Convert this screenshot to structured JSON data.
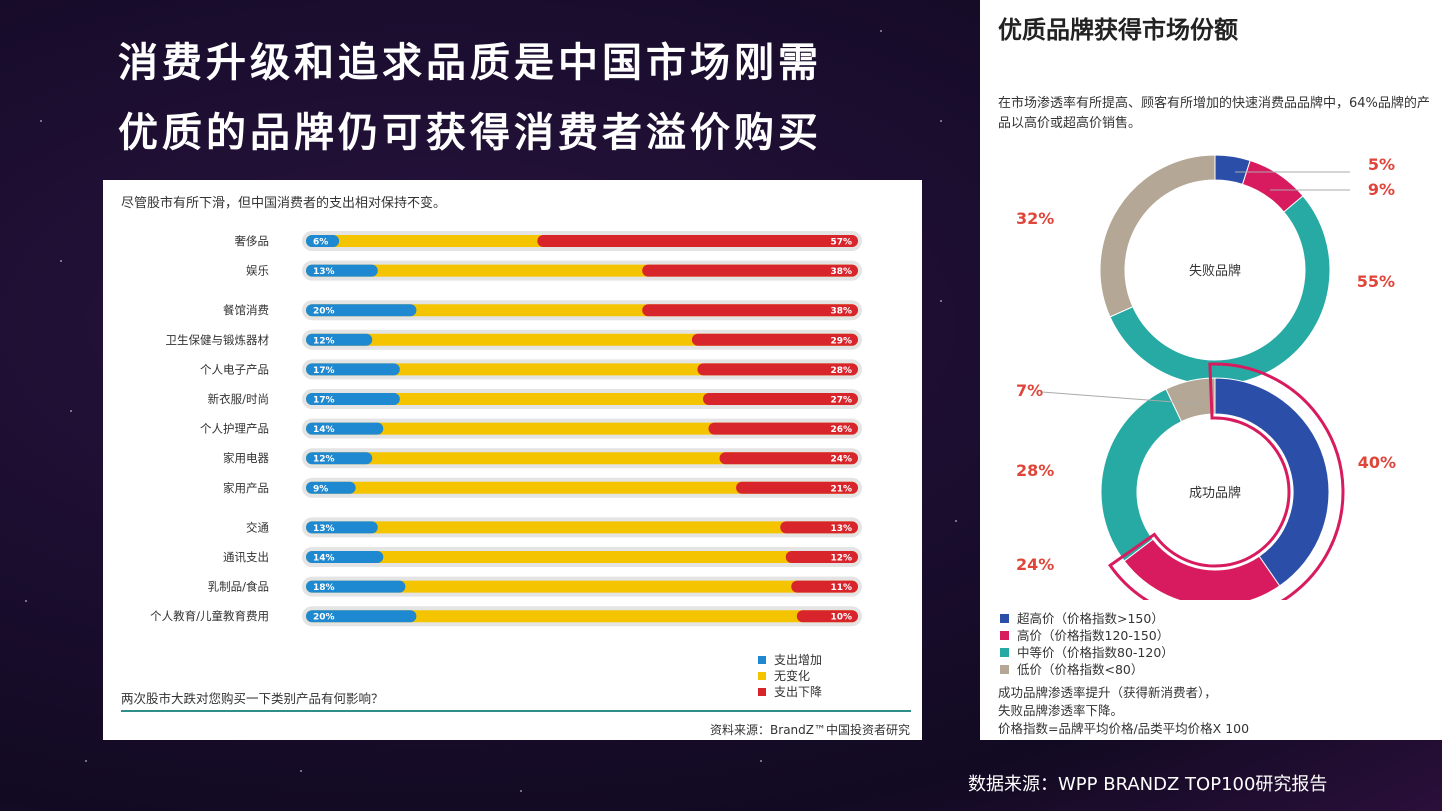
{
  "slide": {
    "title_lines": [
      "消费升级和追求品质是中国市场刚需",
      "优质的品牌仍可获得消费者溢价购买"
    ],
    "footer_source": "数据来源：WPP BRANDZ TOP100研究报告"
  },
  "left_panel": {
    "subtitle": "尽管股市有所下滑，但中国消费者的支出相对保持不变。",
    "question": "两次股市大跌对您购买一下类别产品有何影响？",
    "source": "资料来源：BrandZ™中国投资者研究",
    "colors": {
      "increase": "#1e88d0",
      "nochange": "#f5c400",
      "decrease": "#d8242b"
    }
  },
  "right_panel": {
    "title": "优质品牌获得市场份额",
    "description": "在市场渗透率有所提高、顾客有所增加的快速消费品品牌中，64%品牌的产品以高价或超高价销售。",
    "notes": [
      "成功品牌渗透率提升（获得新消费者），",
      "失败品牌渗透率下降。",
      "价格指数=品牌平均价格/品类平均价格X 100"
    ],
    "legend": [
      {
        "label": "超高价（价格指数>150）",
        "color": "#2b4ea8"
      },
      {
        "label": "高价（价格指数120-150）",
        "color": "#d81b5e"
      },
      {
        "label": "中等价（价格指数80-120）",
        "color": "#26aaa3"
      },
      {
        "label": "低价（价格指数<80）",
        "color": "#b4a796"
      }
    ]
  },
  "chart_data": [
    {
      "type": "bar",
      "stacked": true,
      "categories": [
        "奢侈品",
        "娱乐",
        "餐馆消费",
        "卫生保健与锻炼器材",
        "个人电子产品",
        "新衣服/时尚",
        "个人护理产品",
        "家用电器",
        "家用产品",
        "交通",
        "通讯支出",
        "乳制品/食品",
        "个人教育/儿童教育费用"
      ],
      "groups": [
        [
          0,
          1
        ],
        [
          2,
          3,
          4,
          5,
          6,
          7,
          8
        ],
        [
          9,
          10,
          11,
          12
        ]
      ],
      "series": [
        {
          "name": "支出增加",
          "values": [
            6,
            13,
            20,
            12,
            17,
            17,
            14,
            12,
            9,
            13,
            14,
            18,
            20
          ],
          "labels": [
            "6%",
            "13%",
            "20%",
            "12%",
            "17%",
            "17%",
            "14%",
            "12%",
            "9%",
            "13%",
            "14%",
            "18%",
            "20%"
          ]
        },
        {
          "name": "无变化",
          "values": [
            37,
            49,
            42,
            59,
            55,
            56,
            60,
            64,
            70,
            74,
            74,
            71,
            70
          ]
        },
        {
          "name": "支出下降",
          "values": [
            57,
            38,
            38,
            29,
            28,
            27,
            26,
            24,
            21,
            13,
            12,
            11,
            10
          ],
          "labels": [
            "57%",
            "38%",
            "38%",
            "29%",
            "28%",
            "27%",
            "26%",
            "24%",
            "21%",
            "13%",
            "12%",
            "11%",
            "10%"
          ]
        }
      ],
      "xlim": [
        0,
        100
      ]
    },
    {
      "type": "pie",
      "donut": true,
      "center_label": "失败品牌",
      "categories": [
        "超高价",
        "高价",
        "中等价",
        "低价"
      ],
      "values": [
        5,
        9,
        55,
        32
      ],
      "labels": [
        "5%",
        "9%",
        "55%",
        "32%"
      ]
    },
    {
      "type": "pie",
      "donut": true,
      "center_label": "成功品牌",
      "categories": [
        "超高价",
        "高价",
        "中等价",
        "低价"
      ],
      "values": [
        40,
        24,
        28,
        7
      ],
      "labels": [
        "40%",
        "24%",
        "28%",
        "7%"
      ]
    }
  ]
}
